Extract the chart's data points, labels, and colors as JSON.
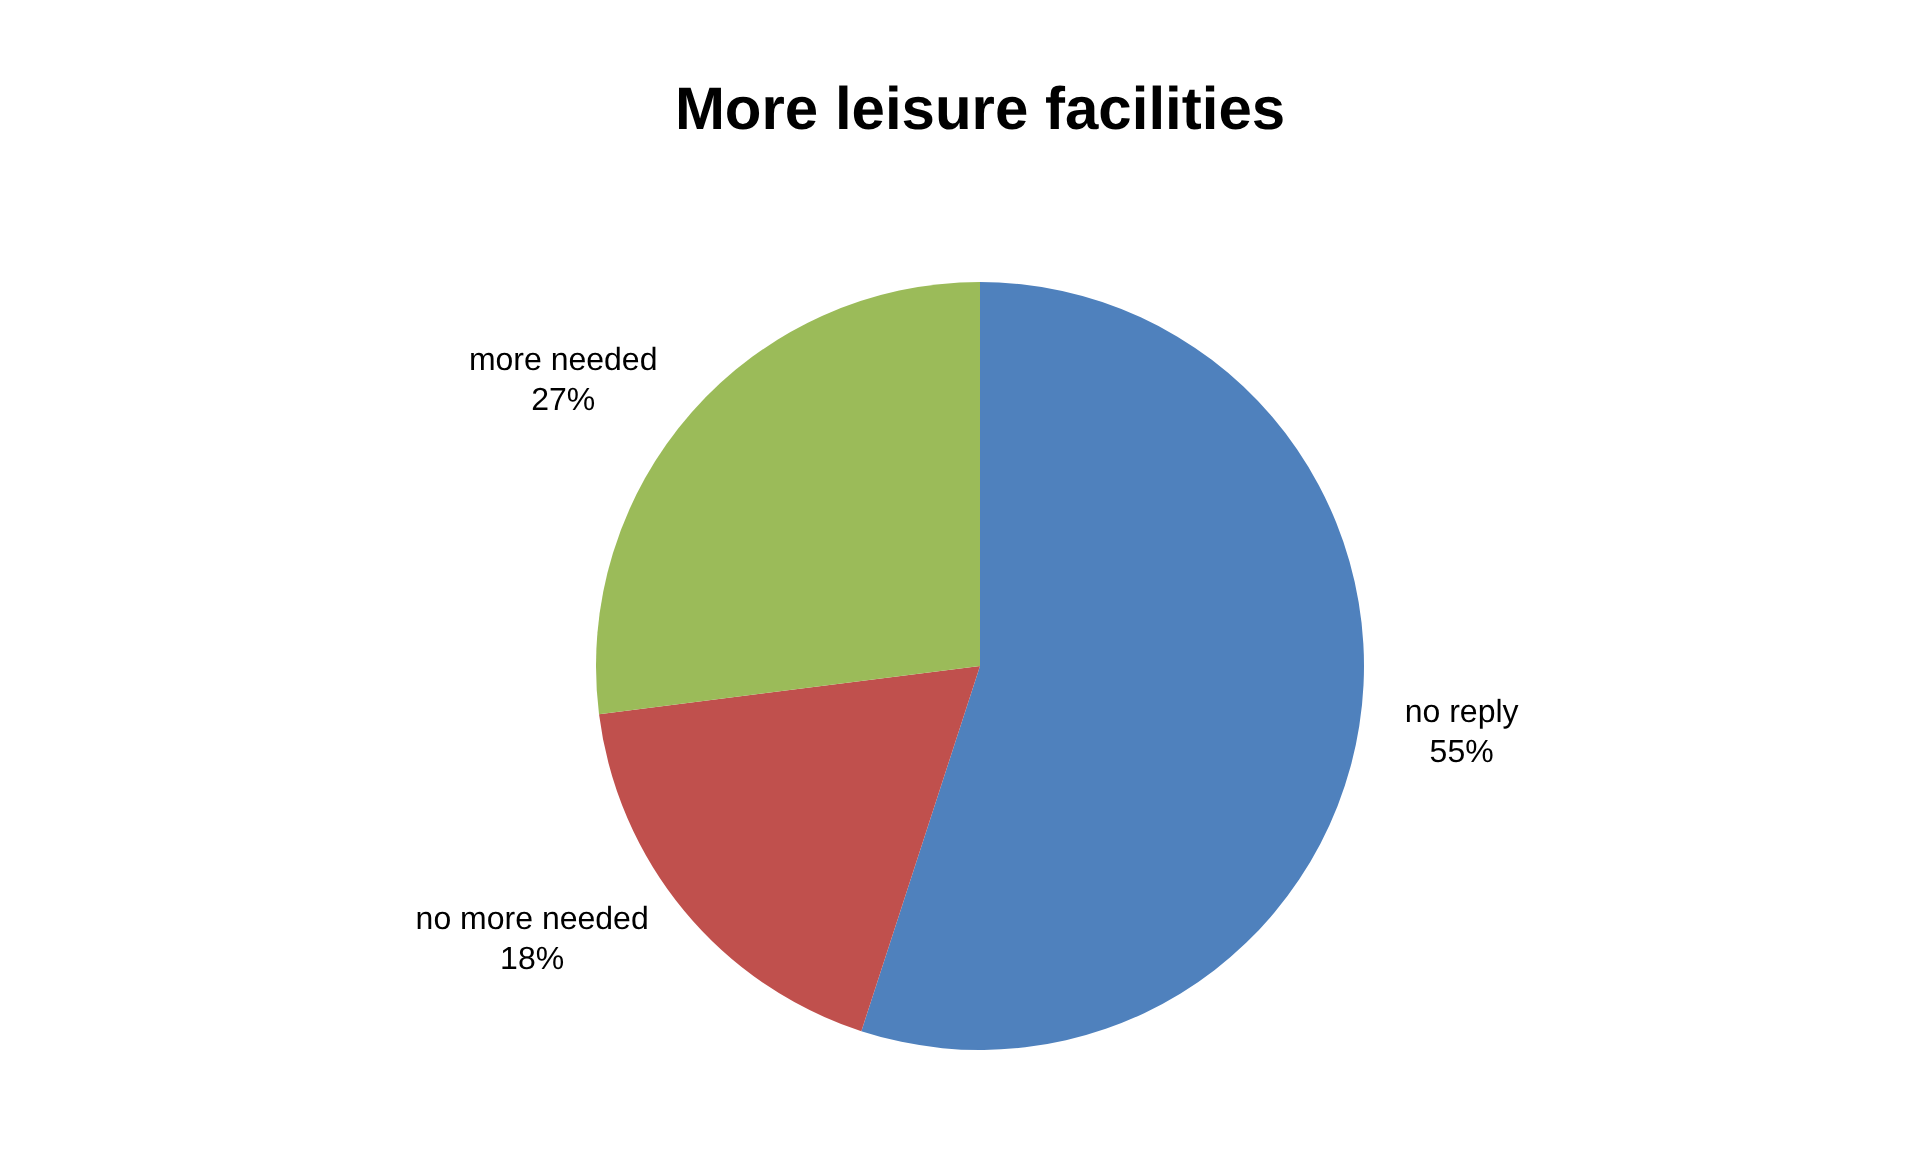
{
  "chart_data": {
    "type": "pie",
    "title": "More leisure facilities",
    "categories": [
      "no reply",
      "no more needed",
      "more needed"
    ],
    "values": [
      55,
      18,
      27
    ],
    "colors": [
      "#4f81bd",
      "#c0504d",
      "#9bbb59"
    ],
    "value_labels": [
      "55%",
      "18%",
      "27%"
    ],
    "legend": false
  }
}
